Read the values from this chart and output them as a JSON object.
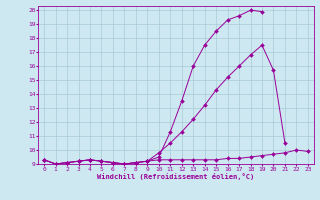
{
  "xlabel": "Windchill (Refroidissement éolien,°C)",
  "bg_color": "#cde8f0",
  "line_color": "#990099",
  "grid_color": "#a8ccd8",
  "x_values": [
    0,
    1,
    2,
    3,
    4,
    5,
    6,
    7,
    8,
    9,
    10,
    11,
    12,
    13,
    14,
    15,
    16,
    17,
    18,
    19,
    20,
    21,
    22,
    23
  ],
  "line1": [
    9.3,
    9.0,
    9.1,
    9.2,
    9.3,
    9.2,
    9.1,
    9.0,
    9.1,
    9.2,
    9.5,
    11.3,
    13.5,
    16.0,
    17.5,
    18.5,
    19.3,
    19.6,
    20.0,
    19.9,
    null,
    null,
    null,
    null
  ],
  "line2": [
    9.3,
    9.0,
    9.1,
    9.2,
    9.3,
    9.2,
    9.1,
    9.0,
    9.1,
    9.2,
    9.8,
    10.5,
    11.3,
    12.2,
    13.2,
    14.3,
    15.2,
    16.0,
    16.8,
    17.5,
    15.7,
    10.5,
    null,
    null
  ],
  "line3": [
    9.3,
    9.0,
    9.1,
    9.2,
    9.3,
    9.2,
    9.1,
    9.0,
    9.1,
    9.2,
    9.3,
    9.3,
    9.3,
    9.3,
    9.3,
    9.3,
    9.4,
    9.4,
    9.5,
    9.6,
    9.7,
    9.8,
    10.0,
    9.9
  ],
  "ylim": [
    9,
    20
  ],
  "xlim": [
    0,
    23
  ],
  "yticks": [
    9,
    10,
    11,
    12,
    13,
    14,
    15,
    16,
    17,
    18,
    19,
    20
  ],
  "xticks": [
    0,
    1,
    2,
    3,
    4,
    5,
    6,
    7,
    8,
    9,
    10,
    11,
    12,
    13,
    14,
    15,
    16,
    17,
    18,
    19,
    20,
    21,
    22,
    23
  ]
}
